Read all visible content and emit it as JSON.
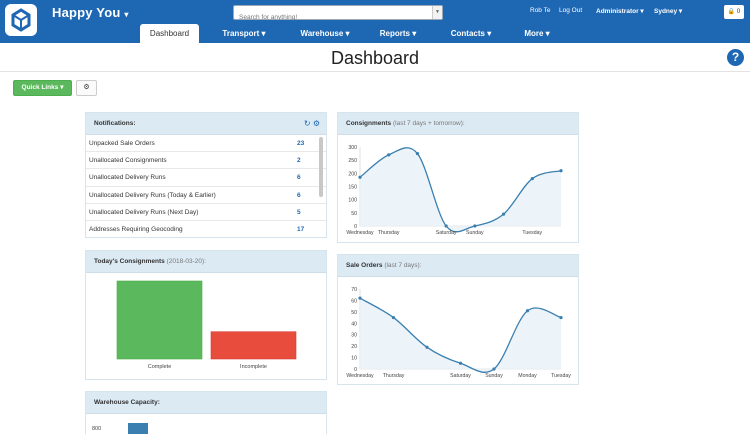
{
  "header": {
    "app_title": "Happy You",
    "search_placeholder": "Search for anything!",
    "user_name": "Rob Te",
    "logout_label": "Log Out",
    "role": "Administrator",
    "location": "Sydney",
    "cart_count": "0"
  },
  "nav": [
    {
      "label": "Dashboard",
      "active": true
    },
    {
      "label": "Transport"
    },
    {
      "label": "Warehouse"
    },
    {
      "label": "Reports"
    },
    {
      "label": "Contacts"
    },
    {
      "label": "More"
    }
  ],
  "page": {
    "title": "Dashboard",
    "quick_links_label": "Quick Links"
  },
  "notifications": {
    "title": "Notifications:",
    "items": [
      {
        "label": "Unpacked Sale Orders",
        "count": "23"
      },
      {
        "label": "Unallocated Consignments",
        "count": "2"
      },
      {
        "label": "Unallocated Delivery Runs",
        "count": "6"
      },
      {
        "label": "Unallocated Delivery Runs (Today & Earlier)",
        "count": "6"
      },
      {
        "label": "Unallocated Delivery Runs (Next Day)",
        "count": "5"
      },
      {
        "label": "Addresses Requiring Geocoding",
        "count": "17"
      }
    ]
  },
  "consignments_today": {
    "title": "Today's Consignments",
    "date": "(2018-03-20):"
  },
  "warehouse_capacity": {
    "title": "Warehouse Capacity:"
  },
  "consignments_week": {
    "title": "Consignments",
    "subtitle": "(last 7 days + tomorrow):"
  },
  "sale_orders": {
    "title": "Sale Orders",
    "subtitle": "(last 7 days):"
  },
  "colors": {
    "brand": "#1e67b3",
    "success": "#5cb85c",
    "danger": "#e74c3c",
    "line": "#3a7fb0",
    "area": "#e8f1f8"
  },
  "chart_data": [
    {
      "type": "line",
      "name": "consignments",
      "x": [
        "Wednesday",
        "Thursday",
        "Friday",
        "Saturday",
        "Sunday",
        "Monday",
        "Tuesday",
        "Wednesday"
      ],
      "x_tick_labels": [
        "Wednesday",
        "Thursday",
        "Saturday",
        "Sunday",
        "Tuesday"
      ],
      "values": [
        185,
        270,
        275,
        0,
        0,
        45,
        180,
        210
      ],
      "ylim": [
        0,
        300
      ],
      "yticks": [
        0,
        50,
        100,
        150,
        200,
        250,
        300
      ],
      "grid": false
    },
    {
      "type": "line",
      "name": "sale_orders",
      "x": [
        "Wednesday",
        "Thursday",
        "Friday",
        "Saturday",
        "Sunday",
        "Monday",
        "Tuesday"
      ],
      "x_tick_labels": [
        "Wednesday",
        "Thursday",
        "Saturday",
        "Sunday",
        "Monday",
        "Tuesday"
      ],
      "values": [
        62,
        45,
        19,
        5,
        0,
        51,
        45
      ],
      "ylim": [
        0,
        70
      ],
      "yticks": [
        0,
        10,
        20,
        30,
        40,
        50,
        60,
        70
      ],
      "grid": false
    },
    {
      "type": "bar",
      "name": "todays_consignments",
      "categories": [
        "Complete",
        "Incomplete"
      ],
      "values": [
        100,
        35
      ],
      "colors": [
        "#5cb85c",
        "#e74c3c"
      ]
    },
    {
      "type": "bar",
      "name": "warehouse_capacity",
      "yticks": [
        800
      ],
      "values": [
        800
      ]
    }
  ]
}
